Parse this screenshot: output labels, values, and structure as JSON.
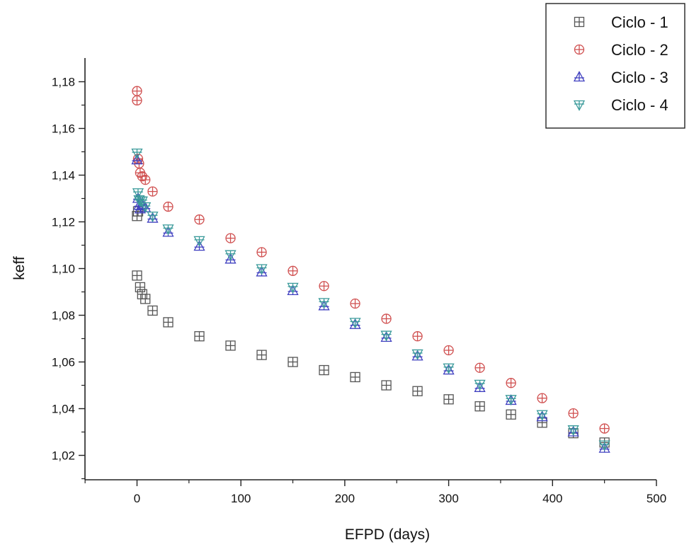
{
  "chart_data": {
    "type": "scatter",
    "xlabel": "EFPD (days)",
    "ylabel": "keff",
    "xlim": [
      -50,
      500
    ],
    "ylim": [
      1.01,
      1.19
    ],
    "x_ticks": [
      0,
      100,
      200,
      300,
      400,
      500
    ],
    "x_tick_labels": [
      "0",
      "100",
      "200",
      "300",
      "400",
      "500"
    ],
    "y_ticks": [
      1.02,
      1.04,
      1.06,
      1.08,
      1.1,
      1.12,
      1.14,
      1.16,
      1.18
    ],
    "y_tick_labels": [
      "1,02",
      "1,04",
      "1,06",
      "1,08",
      "1,10",
      "1,12",
      "1,14",
      "1,16",
      "1,18"
    ],
    "grid": false,
    "legend_position": "top-right",
    "series": [
      {
        "name": "Ciclo - 1",
        "marker": "square-cross",
        "color": "#555555",
        "points": [
          [
            0,
            1.097
          ],
          [
            0,
            1.1225
          ],
          [
            1,
            1.1245
          ],
          [
            3,
            1.092
          ],
          [
            5,
            1.089
          ],
          [
            8,
            1.087
          ],
          [
            15,
            1.082
          ],
          [
            30,
            1.077
          ],
          [
            60,
            1.071
          ],
          [
            90,
            1.067
          ],
          [
            120,
            1.063
          ],
          [
            150,
            1.06
          ],
          [
            180,
            1.0565
          ],
          [
            210,
            1.0535
          ],
          [
            240,
            1.05
          ],
          [
            270,
            1.0475
          ],
          [
            300,
            1.044
          ],
          [
            330,
            1.041
          ],
          [
            360,
            1.0375
          ],
          [
            390,
            1.034
          ],
          [
            420,
            1.0295
          ],
          [
            450,
            1.0255
          ]
        ]
      },
      {
        "name": "Ciclo - 2",
        "marker": "circle-cross",
        "color": "#d05050",
        "points": [
          [
            0,
            1.176
          ],
          [
            0,
            1.172
          ],
          [
            1,
            1.147
          ],
          [
            2,
            1.145
          ],
          [
            3,
            1.141
          ],
          [
            5,
            1.1395
          ],
          [
            8,
            1.138
          ],
          [
            15,
            1.133
          ],
          [
            30,
            1.1265
          ],
          [
            60,
            1.121
          ],
          [
            90,
            1.113
          ],
          [
            120,
            1.107
          ],
          [
            150,
            1.099
          ],
          [
            180,
            1.0925
          ],
          [
            210,
            1.085
          ],
          [
            240,
            1.0785
          ],
          [
            270,
            1.071
          ],
          [
            300,
            1.065
          ],
          [
            330,
            1.0575
          ],
          [
            360,
            1.051
          ],
          [
            390,
            1.0445
          ],
          [
            420,
            1.038
          ],
          [
            450,
            1.0315
          ]
        ]
      },
      {
        "name": "Ciclo - 3",
        "marker": "triangle-up-cross",
        "color": "#4040c0",
        "points": [
          [
            0,
            1.1465
          ],
          [
            1,
            1.13
          ],
          [
            2,
            1.127
          ],
          [
            3,
            1.1255
          ],
          [
            5,
            1.1275
          ],
          [
            8,
            1.126
          ],
          [
            15,
            1.1215
          ],
          [
            30,
            1.1155
          ],
          [
            60,
            1.1095
          ],
          [
            90,
            1.104
          ],
          [
            120,
            1.0985
          ],
          [
            150,
            1.0905
          ],
          [
            180,
            1.084
          ],
          [
            210,
            1.076
          ],
          [
            240,
            1.0705
          ],
          [
            270,
            1.0625
          ],
          [
            300,
            1.0565
          ],
          [
            330,
            1.049
          ],
          [
            360,
            1.0435
          ],
          [
            390,
            1.0365
          ],
          [
            420,
            1.03
          ],
          [
            450,
            1.023
          ]
        ]
      },
      {
        "name": "Ciclo - 4",
        "marker": "triangle-down-cross",
        "color": "#3a9a9a",
        "points": [
          [
            0,
            1.1495
          ],
          [
            1,
            1.1325
          ],
          [
            2,
            1.1295
          ],
          [
            3,
            1.129
          ],
          [
            5,
            1.129
          ],
          [
            8,
            1.1265
          ],
          [
            15,
            1.1225
          ],
          [
            30,
            1.117
          ],
          [
            60,
            1.112
          ],
          [
            90,
            1.106
          ],
          [
            120,
            1.1
          ],
          [
            150,
            1.092
          ],
          [
            180,
            1.0855
          ],
          [
            210,
            1.077
          ],
          [
            240,
            1.0715
          ],
          [
            270,
            1.0635
          ],
          [
            300,
            1.0575
          ],
          [
            330,
            1.0505
          ],
          [
            360,
            1.044
          ],
          [
            390,
            1.0375
          ],
          [
            420,
            1.031
          ],
          [
            450,
            1.0245
          ]
        ]
      }
    ]
  }
}
